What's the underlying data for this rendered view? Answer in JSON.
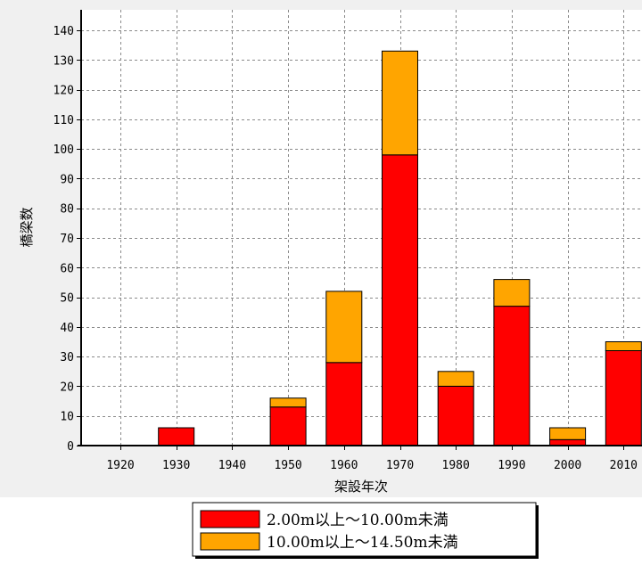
{
  "chart_data": {
    "type": "bar",
    "stacked": true,
    "xlabel": "架設年次",
    "ylabel": "橋梁数",
    "categories": [
      "1920",
      "1930",
      "1940",
      "1950",
      "1960",
      "1970",
      "1980",
      "1990",
      "2000",
      "2010"
    ],
    "series": [
      {
        "name": "2.00m以上～10.00m未満",
        "color": "#ff0000",
        "values": [
          0,
          6,
          0,
          13,
          28,
          98,
          20,
          47,
          2,
          32
        ]
      },
      {
        "name": "10.00m以上～14.50m未満",
        "color": "#ffa500",
        "values": [
          0,
          0,
          0,
          3,
          24,
          35,
          5,
          9,
          4,
          3
        ]
      }
    ],
    "ylim": [
      0,
      140
    ],
    "yticks": [
      0,
      10,
      20,
      30,
      40,
      50,
      60,
      70,
      80,
      90,
      100,
      110,
      120,
      130,
      140
    ],
    "grid": true,
    "legend_position": "bottom"
  }
}
